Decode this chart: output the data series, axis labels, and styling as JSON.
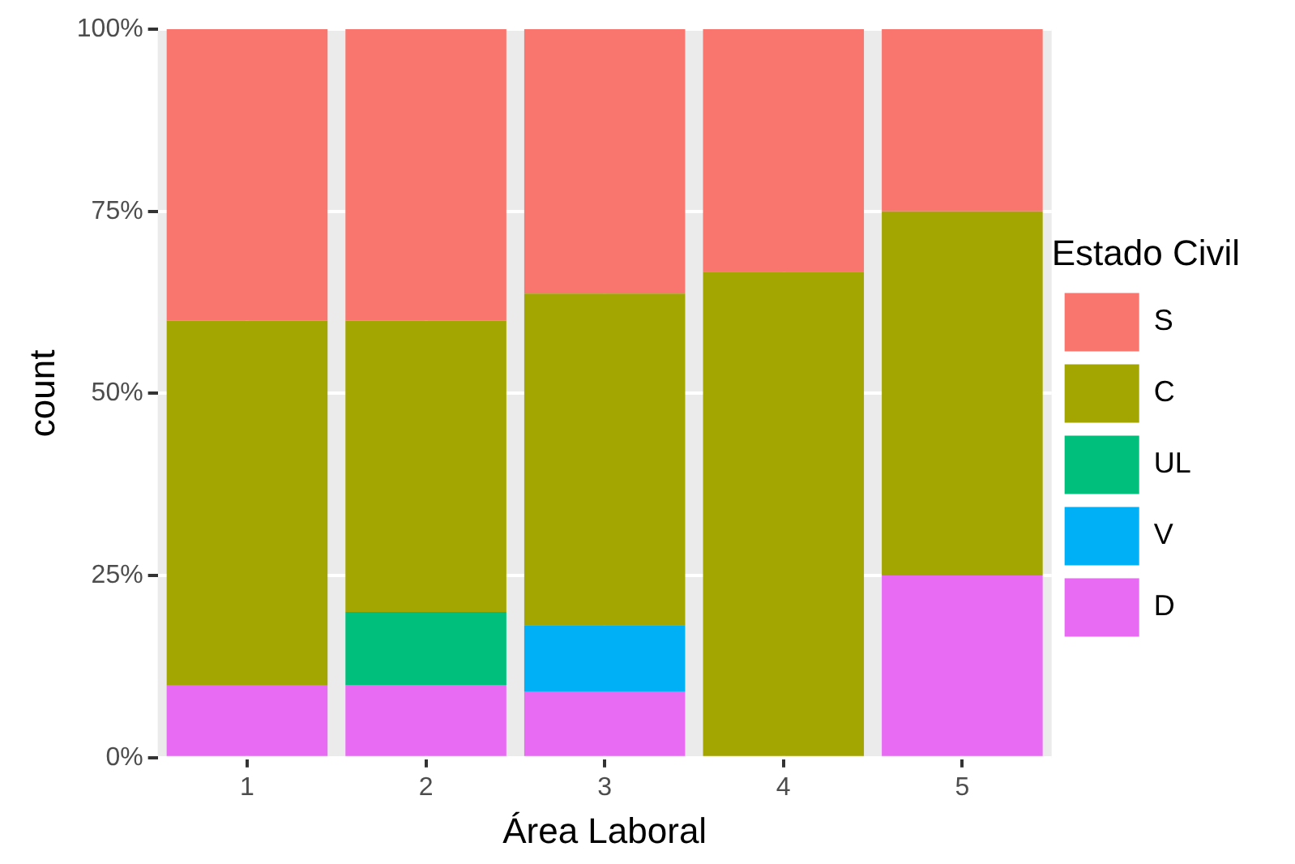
{
  "chart_data": {
    "type": "bar",
    "stacked": true,
    "xlabel": "Área Laboral",
    "ylabel": "count",
    "legend_title": "Estado Civil",
    "legend": "right",
    "grid": true,
    "categories": [
      "1",
      "2",
      "3",
      "4",
      "5"
    ],
    "ylim": [
      0,
      100
    ],
    "yticks": [
      {
        "value": 0,
        "label": "0%"
      },
      {
        "value": 25,
        "label": "25%"
      },
      {
        "value": 50,
        "label": "50%"
      },
      {
        "value": 75,
        "label": "75%"
      },
      {
        "value": 100,
        "label": "100%"
      }
    ],
    "series": [
      {
        "name": "D",
        "color": "#e76bf3",
        "values": [
          10,
          10,
          9.1,
          0,
          25
        ]
      },
      {
        "name": "V",
        "color": "#00b0f6",
        "values": [
          0,
          0,
          9.1,
          0,
          0
        ]
      },
      {
        "name": "UL",
        "color": "#00bf7d",
        "values": [
          0,
          10,
          0,
          0,
          0
        ]
      },
      {
        "name": "C",
        "color": "#a3a500",
        "values": [
          50,
          40,
          45.5,
          66.7,
          50
        ]
      },
      {
        "name": "S",
        "color": "#f8766d",
        "values": [
          40,
          40,
          36.3,
          33.3,
          25
        ]
      }
    ]
  }
}
